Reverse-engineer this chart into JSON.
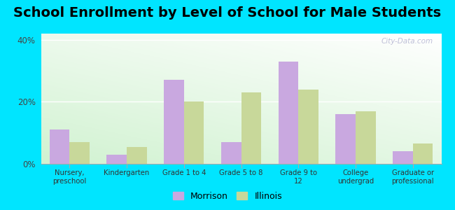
{
  "title": "School Enrollment by Level of School for Male Students",
  "categories": [
    "Nursery,\npreschool",
    "Kindergarten",
    "Grade 1 to 4",
    "Grade 5 to 8",
    "Grade 9 to\n12",
    "College\nundergrad",
    "Graduate or\nprofessional"
  ],
  "morrison_values": [
    11.0,
    3.0,
    27.0,
    7.0,
    33.0,
    16.0,
    4.0
  ],
  "illinois_values": [
    7.0,
    5.5,
    20.0,
    23.0,
    24.0,
    17.0,
    6.5
  ],
  "morrison_color": "#c9a8e0",
  "illinois_color": "#c8d89a",
  "background_outer": "#00e5ff",
  "ylim": [
    0,
    42
  ],
  "yticks": [
    0,
    20,
    40
  ],
  "ytick_labels": [
    "0%",
    "20%",
    "40%"
  ],
  "title_fontsize": 14,
  "bar_width": 0.35,
  "legend_labels": [
    "Morrison",
    "Illinois"
  ],
  "watermark": "City-Data.com"
}
